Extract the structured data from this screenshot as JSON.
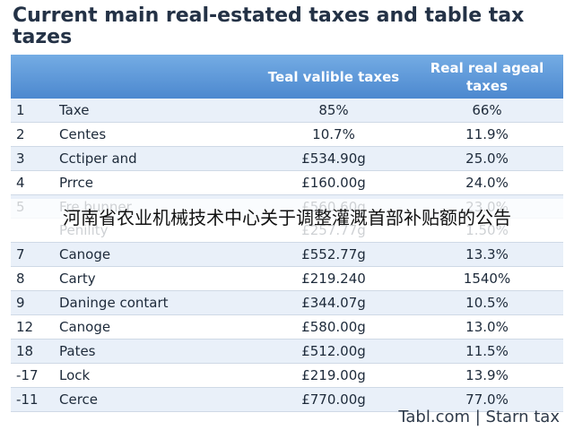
{
  "title": "Current main real-estated taxes and table tax tazes",
  "table": {
    "headers": [
      "",
      "",
      "Teal valible taxes",
      "Real real ageal taxes"
    ],
    "rows": [
      {
        "num": "1",
        "name": "Taxe",
        "col1": "85%",
        "col2": "66%"
      },
      {
        "num": "2",
        "name": "Centes",
        "col1": "10.7%",
        "col2": "11.9%"
      },
      {
        "num": "3",
        "name": "Cctiper and",
        "col1": "£534.90g",
        "col2": "25.0%"
      },
      {
        "num": "4",
        "name": "Prrce",
        "col1": "£160.00g",
        "col2": "24.0%"
      },
      {
        "num": "5",
        "name": "Fre bunner",
        "col1": "£560.60g",
        "col2": "23.0%"
      },
      {
        "num": "",
        "name": "Penility",
        "col1": "£257.77g",
        "col2": "1.50%"
      },
      {
        "num": "7",
        "name": "Canoge",
        "col1": "£552.77g",
        "col2": "13.3%"
      },
      {
        "num": "8",
        "name": "Carty",
        "col1": "£219.240",
        "col2": "1540%"
      },
      {
        "num": "9",
        "name": "Daninge contart",
        "col1": "£344.07g",
        "col2": "10.5%"
      },
      {
        "num": "12",
        "name": "Canoge",
        "col1": "£580.00g",
        "col2": "13.0%"
      },
      {
        "num": "18",
        "name": "Pates",
        "col1": "£512.00g",
        "col2": "11.5%"
      },
      {
        "num": "-17",
        "name": "Lock",
        "col1": "£219.00g",
        "col2": "13.9%"
      },
      {
        "num": "-11",
        "name": "Cerce",
        "col1": "£770.00g",
        "col2": "77.0%"
      }
    ]
  },
  "overlay_text": "河南省农业机械技术中心关于调整灌溉首部补贴额的公告",
  "footer": "Tabl.com | Starn tax"
}
